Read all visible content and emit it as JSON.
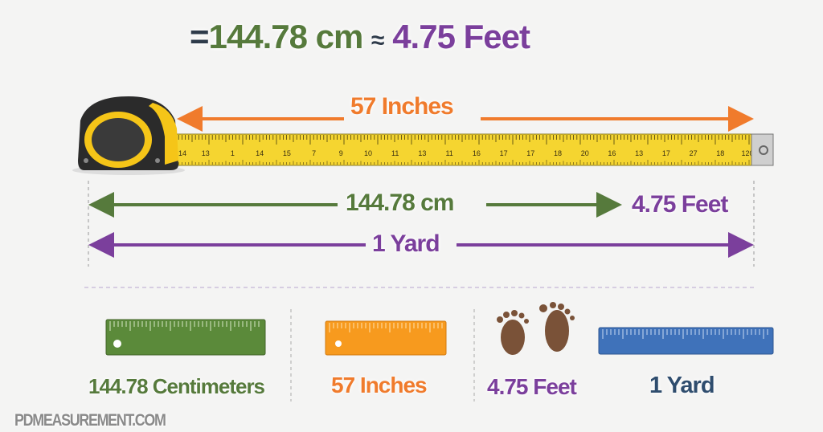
{
  "headline": {
    "equals": "=",
    "cm": "144.78 cm",
    "approx": "≈",
    "feet": "4.75 Feet"
  },
  "tape": {
    "label": "57 Inches",
    "tick_labels": [
      "14",
      "13",
      "1",
      "14",
      "15",
      "7",
      "9",
      "10",
      "11",
      "13",
      "11",
      "16",
      "17",
      "17",
      "18",
      "20",
      "16",
      "13",
      "17",
      "27",
      "18",
      "120"
    ]
  },
  "arrows": {
    "cm_label": "144.78 cm",
    "feet_label": "4.75 Feet",
    "yard_label": "1 Yard"
  },
  "bottom": {
    "items": [
      {
        "label": "144.78 Centimeters",
        "icon": "green-ruler-icon"
      },
      {
        "label": "57 Inches",
        "icon": "orange-ruler-icon"
      },
      {
        "label": "4.75 Feet",
        "icon": "footprints-icon"
      },
      {
        "label": "1 Yard",
        "icon": "blue-ruler-icon"
      }
    ]
  },
  "watermark": "PDMEASUREMENT.COM",
  "colors": {
    "green": "#567a3c",
    "orange": "#f07b2c",
    "purple": "#7b3f9c",
    "blue": "#3f72ba",
    "navy": "#2f4d6e",
    "tape_yellow": "#f5d530",
    "case": "#2b2b2b",
    "foot_brown": "#7a5238"
  }
}
